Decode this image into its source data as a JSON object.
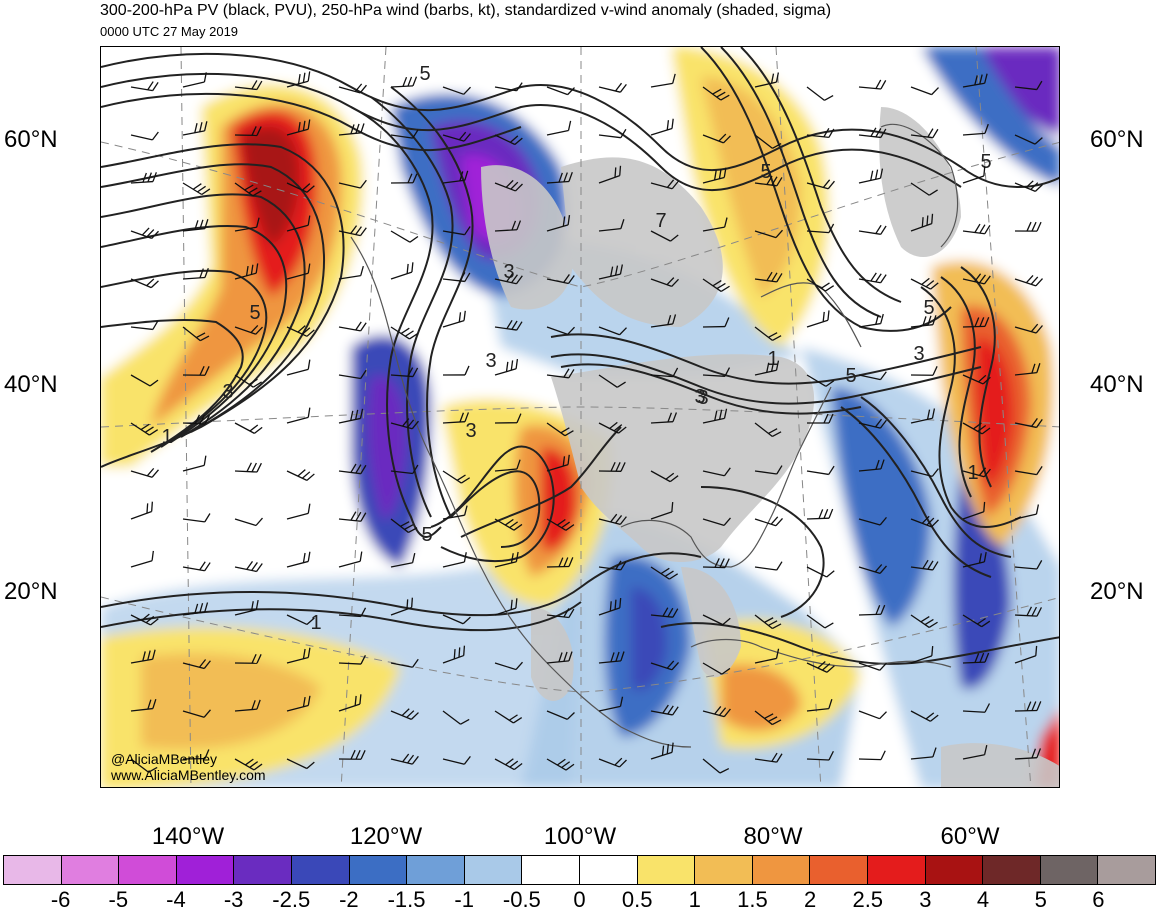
{
  "title": "300-200-hPa PV (black, PVU), 250-hPa wind (barbs, kt), standardized v-wind anomaly (shaded, sigma)",
  "subtitle": "0000 UTC 27 May 2019",
  "credits": [
    "@AliciaMBentley",
    "www.AliciaMBentley.com"
  ],
  "latitude_labels": [
    "60°N",
    "40°N",
    "20°N"
  ],
  "longitude_labels": [
    "140°W",
    "120°W",
    "100°W",
    "80°W",
    "60°W"
  ],
  "contour_labels": [
    "5",
    "3",
    "1",
    "5",
    "3",
    "3",
    "5",
    "7",
    "3",
    "1",
    "5",
    "5",
    "5",
    "3",
    "1",
    "3",
    "5",
    "1",
    "3"
  ],
  "colorbar": {
    "ticks": [
      "-6",
      "-5",
      "-4",
      "-3",
      "-2.5",
      "-2",
      "-1.5",
      "-1",
      "-0.5",
      "0",
      "0.5",
      "1",
      "1.5",
      "2",
      "2.5",
      "3",
      "4",
      "5",
      "6"
    ],
    "colors": [
      "#e8b8e8",
      "#e07ee0",
      "#d04cd8",
      "#a020d8",
      "#6a2cc0",
      "#3a48b8",
      "#3c6ec4",
      "#6f9fd8",
      "#a9c9e8",
      "#ffffff",
      "#ffffff",
      "#f9e36a",
      "#f2bd55",
      "#ef9640",
      "#e9602e",
      "#e41c1c",
      "#a81212",
      "#6e2828",
      "#6e6464",
      "#a89c9c"
    ]
  },
  "map": {
    "land_color": "#c8c8c8",
    "contour_color": "#222222",
    "coast_color": "#555555"
  }
}
